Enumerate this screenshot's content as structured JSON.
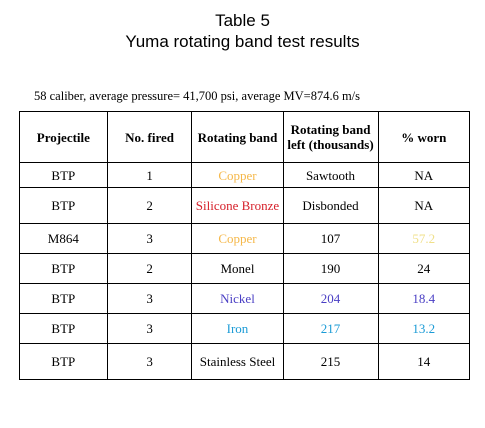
{
  "title_line1": "Table 5",
  "title_line2": "Yuma rotating band test results",
  "subtitle": "58 caliber, average pressure= 41,700 psi, average MV=874.6 m/s",
  "headers": {
    "projectile": "Projectile",
    "no_fired": "No. fired",
    "rotating_band": "Rotating band",
    "band_left": "Rotating band left (thousands)",
    "worn": "% worn"
  },
  "rows": [
    {
      "projectile": "BTP",
      "fired": "1",
      "band": "Copper",
      "band_color": "#f5b84a",
      "left": "Sawtooth",
      "left_color": "#000000",
      "worn": "NA",
      "worn_color": "#000000"
    },
    {
      "projectile": "BTP",
      "fired": "2",
      "band": "Silicone Bronze",
      "band_color": "#d6212b",
      "left": "Disbonded",
      "left_color": "#000000",
      "worn": "NA",
      "worn_color": "#000000"
    },
    {
      "projectile": "M864",
      "fired": "3",
      "band": "Copper",
      "band_color": "#f5b84a",
      "left": "107",
      "left_color": "#000000",
      "worn": "57.2",
      "worn_color": "#f0e08a"
    },
    {
      "projectile": "BTP",
      "fired": "2",
      "band": "Monel",
      "band_color": "#000000",
      "left": "190",
      "left_color": "#000000",
      "worn": "24",
      "worn_color": "#000000"
    },
    {
      "projectile": "BTP",
      "fired": "3",
      "band": "Nickel",
      "band_color": "#4a3fc4",
      "left": "204",
      "left_color": "#4a3fc4",
      "worn": "18.4",
      "worn_color": "#4a3fc4"
    },
    {
      "projectile": "BTP",
      "fired": "3",
      "band": "Iron",
      "band_color": "#1b9bd6",
      "left": "217",
      "left_color": "#1b9bd6",
      "worn": "13.2",
      "worn_color": "#1b9bd6"
    },
    {
      "projectile": "BTP",
      "fired": "3",
      "band": "Stainless Steel",
      "band_color": "#000000",
      "left": "215",
      "left_color": "#000000",
      "worn": "14",
      "worn_color": "#000000"
    }
  ]
}
